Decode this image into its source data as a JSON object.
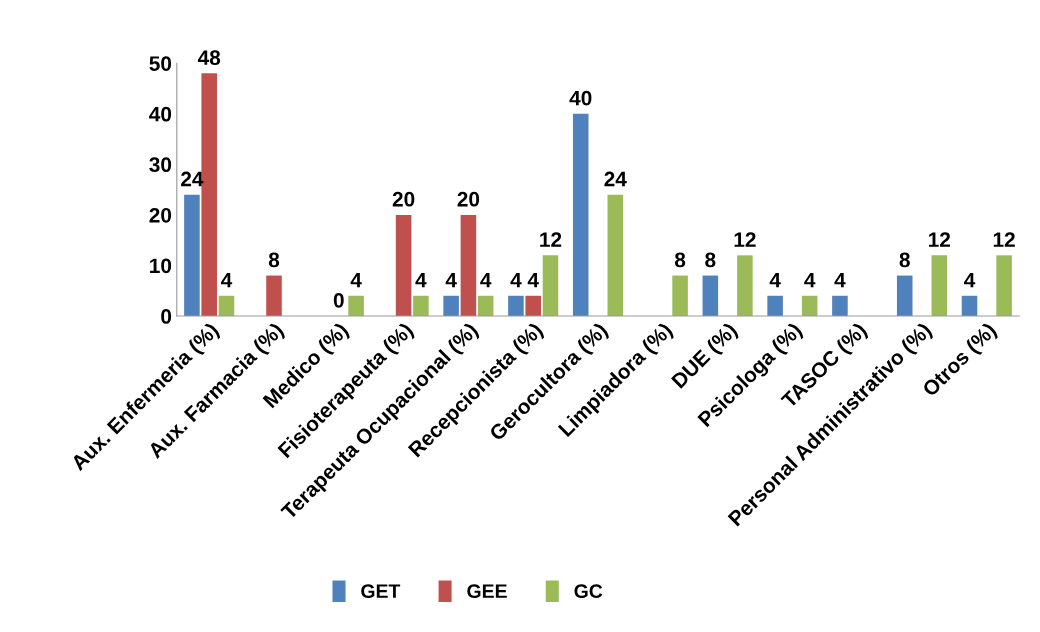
{
  "chart_data": {
    "type": "bar",
    "categories": [
      "Aux. Enfermeria (%)",
      "Aux. Farmacia (%)",
      "Medico (%)",
      "Fisioterapeuta (%)",
      "Terapeuta Ocupacional (%)",
      "Recepcionista (%)",
      "Gerocultora (%)",
      "Limpiadora (%)",
      "DUE (%)",
      "Psicologa (%)",
      "TASOC (%)",
      "Personal Administrativo (%)",
      "Otros (%)"
    ],
    "series": [
      {
        "name": "GET",
        "color": "#4f81bd",
        "values": [
          24,
          null,
          null,
          null,
          4,
          4,
          40,
          null,
          8,
          4,
          4,
          8,
          4
        ]
      },
      {
        "name": "GEE",
        "color": "#c0504d",
        "values": [
          48,
          8,
          0,
          20,
          20,
          4,
          null,
          null,
          null,
          null,
          null,
          null,
          null
        ]
      },
      {
        "name": "GC",
        "color": "#9bbb59",
        "values": [
          4,
          null,
          4,
          4,
          4,
          12,
          24,
          8,
          12,
          4,
          null,
          12,
          12
        ]
      }
    ],
    "ylim": [
      0,
      50
    ],
    "yticks": [
      0,
      10,
      20,
      30,
      40,
      50
    ],
    "grid": false,
    "legend": "bottom",
    "data_labels": true
  }
}
